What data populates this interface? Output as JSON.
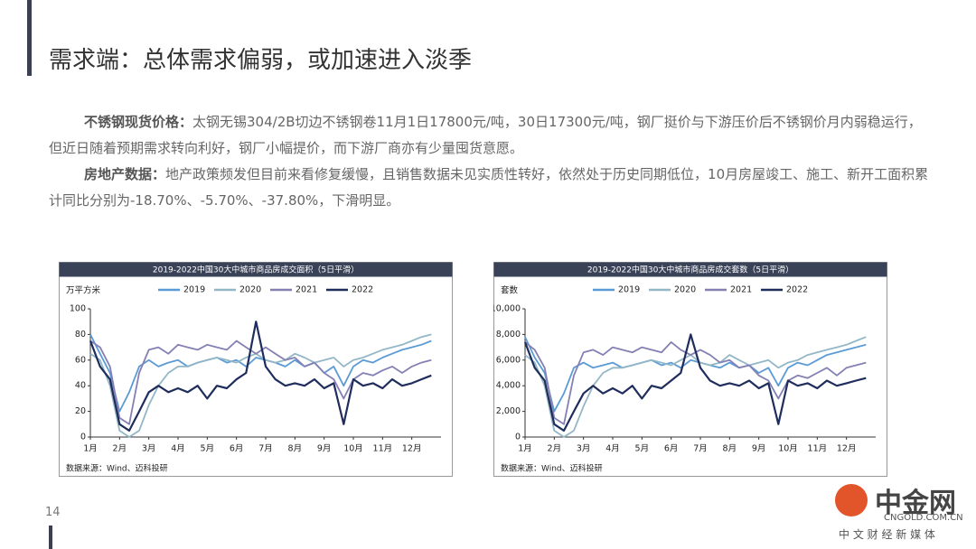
{
  "slide": {
    "title": "需求端：总体需求偏弱，或加速进入淡季",
    "page_number": "14",
    "paragraphs": [
      {
        "label": "不锈钢现货价格：",
        "text": "太钢无锡304/2B切边不锈钢卷11月1日17800元/吨，30日17300元/吨，钢厂挺价与下游压价后不锈钢价月内弱稳运行，但近日随着预期需求转向利好，钢厂小幅提价，而下游厂商亦有少量囤货意愿。"
      },
      {
        "label": "房地产数据：",
        "text": "地产政策频发但目前来看修复缓慢，且销售数据未见实质性转好，依然处于历史同期低位，10月房屋竣工、施工、新开工面积累计同比分别为-18.70%、-5.70%、-37.80%，下滑明显。"
      }
    ]
  },
  "watermark": {
    "name": "中金网",
    "domain": "CNGOLD.COM.CN",
    "slogan": "中 文 财 经 新 媒 体"
  },
  "chart_data": [
    {
      "type": "line",
      "title": "2019-2022中国30大中城市商品房成交面积（5日平滑）",
      "y_label": "万平方米",
      "source": "数据来源：Wind、迈科投研",
      "x": [
        1,
        1.33,
        1.67,
        2,
        2.33,
        2.67,
        3,
        3.33,
        3.67,
        4,
        4.33,
        4.67,
        5,
        5.33,
        5.67,
        6,
        6.33,
        6.67,
        7,
        7.33,
        7.67,
        8,
        8.33,
        8.67,
        9,
        9.33,
        9.67,
        10,
        10.33,
        10.67,
        11,
        11.33,
        11.67,
        12,
        12.33,
        12.67
      ],
      "xlim": [
        1,
        13
      ],
      "xticks": [
        {
          "value": 1,
          "label": "1月"
        },
        {
          "value": 2,
          "label": "2月"
        },
        {
          "value": 3,
          "label": "3月"
        },
        {
          "value": 4,
          "label": "4月"
        },
        {
          "value": 5,
          "label": "5月"
        },
        {
          "value": 6,
          "label": "6月"
        },
        {
          "value": 7,
          "label": "7月"
        },
        {
          "value": 8,
          "label": "8月"
        },
        {
          "value": 9,
          "label": "9月"
        },
        {
          "value": 10,
          "label": "10月"
        },
        {
          "value": 11,
          "label": "11月"
        },
        {
          "value": 12,
          "label": "12月"
        }
      ],
      "ylim": [
        0,
        100
      ],
      "yticks": [
        0,
        20,
        40,
        60,
        80,
        100
      ],
      "series": [
        {
          "name": "2019",
          "color": "#5b9bd5",
          "values": [
            80,
            65,
            50,
            20,
            35,
            55,
            60,
            55,
            58,
            60,
            55,
            58,
            60,
            62,
            58,
            60,
            55,
            62,
            60,
            58,
            55,
            60,
            55,
            58,
            50,
            55,
            40,
            55,
            60,
            58,
            62,
            65,
            68,
            70,
            72,
            75
          ]
        },
        {
          "name": "2020",
          "color": "#93b7c6",
          "values": [
            65,
            60,
            40,
            5,
            0,
            5,
            25,
            40,
            50,
            55,
            55,
            58,
            60,
            62,
            60,
            58,
            62,
            65,
            60,
            58,
            60,
            65,
            62,
            58,
            60,
            62,
            55,
            60,
            62,
            65,
            68,
            70,
            72,
            75,
            78,
            80
          ]
        },
        {
          "name": "2021",
          "color": "#8480b4",
          "values": [
            75,
            70,
            55,
            15,
            10,
            50,
            68,
            70,
            65,
            72,
            70,
            68,
            72,
            70,
            68,
            75,
            70,
            65,
            70,
            65,
            60,
            62,
            55,
            58,
            50,
            45,
            30,
            45,
            50,
            48,
            52,
            55,
            50,
            55,
            58,
            60
          ]
        },
        {
          "name": "2022",
          "color": "#1f2d5c",
          "values": [
            75,
            55,
            45,
            10,
            5,
            20,
            35,
            40,
            35,
            38,
            35,
            40,
            30,
            40,
            38,
            45,
            50,
            90,
            55,
            45,
            40,
            42,
            40,
            45,
            38,
            42,
            10,
            45,
            40,
            42,
            38,
            45,
            40,
            42,
            45,
            48
          ]
        }
      ]
    },
    {
      "type": "line",
      "title": "2019-2022中国30大中城市商品房成交套数（5日平滑）",
      "y_label": "套数",
      "source": "数据来源：Wind、迈科投研",
      "x": [
        1,
        1.33,
        1.67,
        2,
        2.33,
        2.67,
        3,
        3.33,
        3.67,
        4,
        4.33,
        4.67,
        5,
        5.33,
        5.67,
        6,
        6.33,
        6.67,
        7,
        7.33,
        7.67,
        8,
        8.33,
        8.67,
        9,
        9.33,
        9.67,
        10,
        10.33,
        10.67,
        11,
        11.33,
        11.67,
        12,
        12.33,
        12.67
      ],
      "xlim": [
        1,
        13
      ],
      "xticks": [
        {
          "value": 1,
          "label": "1月"
        },
        {
          "value": 2,
          "label": "2月"
        },
        {
          "value": 3,
          "label": "3月"
        },
        {
          "value": 4,
          "label": "4月"
        },
        {
          "value": 5,
          "label": "5月"
        },
        {
          "value": 6,
          "label": "6月"
        },
        {
          "value": 7,
          "label": "7月"
        },
        {
          "value": 8,
          "label": "8月"
        },
        {
          "value": 9,
          "label": "9月"
        },
        {
          "value": 10,
          "label": "10月"
        },
        {
          "value": 11,
          "label": "11月"
        },
        {
          "value": 12,
          "label": "12月"
        }
      ],
      "ylim": [
        0,
        10000
      ],
      "yticks": [
        0,
        {
          "value": 2000,
          "label": "2,000"
        },
        {
          "value": 4000,
          "label": "4,000"
        },
        {
          "value": 6000,
          "label": "6,000"
        },
        {
          "value": 8000,
          "label": "8,000"
        },
        {
          "value": 10000,
          "label": "10,000"
        }
      ],
      "series": [
        {
          "name": "2019",
          "color": "#5b9bd5",
          "values": [
            7800,
            6200,
            5000,
            2000,
            3400,
            5400,
            5800,
            5400,
            5600,
            5800,
            5400,
            5600,
            5800,
            6000,
            5600,
            5800,
            5400,
            6000,
            5800,
            5600,
            5400,
            5800,
            5400,
            5600,
            5000,
            5400,
            4000,
            5400,
            5800,
            5600,
            6000,
            6400,
            6600,
            6800,
            7000,
            7200
          ]
        },
        {
          "name": "2020",
          "color": "#93b7c6",
          "values": [
            6400,
            5800,
            4000,
            500,
            0,
            500,
            2400,
            4000,
            5000,
            5400,
            5400,
            5600,
            5800,
            6000,
            5800,
            5600,
            6000,
            6400,
            5800,
            5600,
            5800,
            6400,
            6000,
            5600,
            5800,
            6000,
            5400,
            5800,
            6000,
            6400,
            6600,
            6800,
            7000,
            7200,
            7500,
            7800
          ]
        },
        {
          "name": "2021",
          "color": "#8480b4",
          "values": [
            7400,
            6800,
            5400,
            1500,
            1000,
            4800,
            6600,
            6800,
            6400,
            7000,
            6800,
            6600,
            7000,
            6800,
            6600,
            7400,
            6800,
            6400,
            6800,
            6400,
            5800,
            6000,
            5400,
            5600,
            4800,
            4400,
            3000,
            4400,
            4800,
            4600,
            5000,
            5400,
            4800,
            5400,
            5600,
            5800
          ]
        },
        {
          "name": "2022",
          "color": "#1f2d5c",
          "values": [
            7400,
            5400,
            4400,
            1000,
            500,
            2000,
            3400,
            4000,
            3400,
            3800,
            3400,
            4000,
            3000,
            4000,
            3800,
            4400,
            5000,
            8000,
            5400,
            4400,
            4000,
            4200,
            4000,
            4400,
            3800,
            4200,
            1000,
            4400,
            4000,
            4200,
            3800,
            4400,
            4000,
            4200,
            4400,
            4600
          ]
        }
      ]
    }
  ]
}
